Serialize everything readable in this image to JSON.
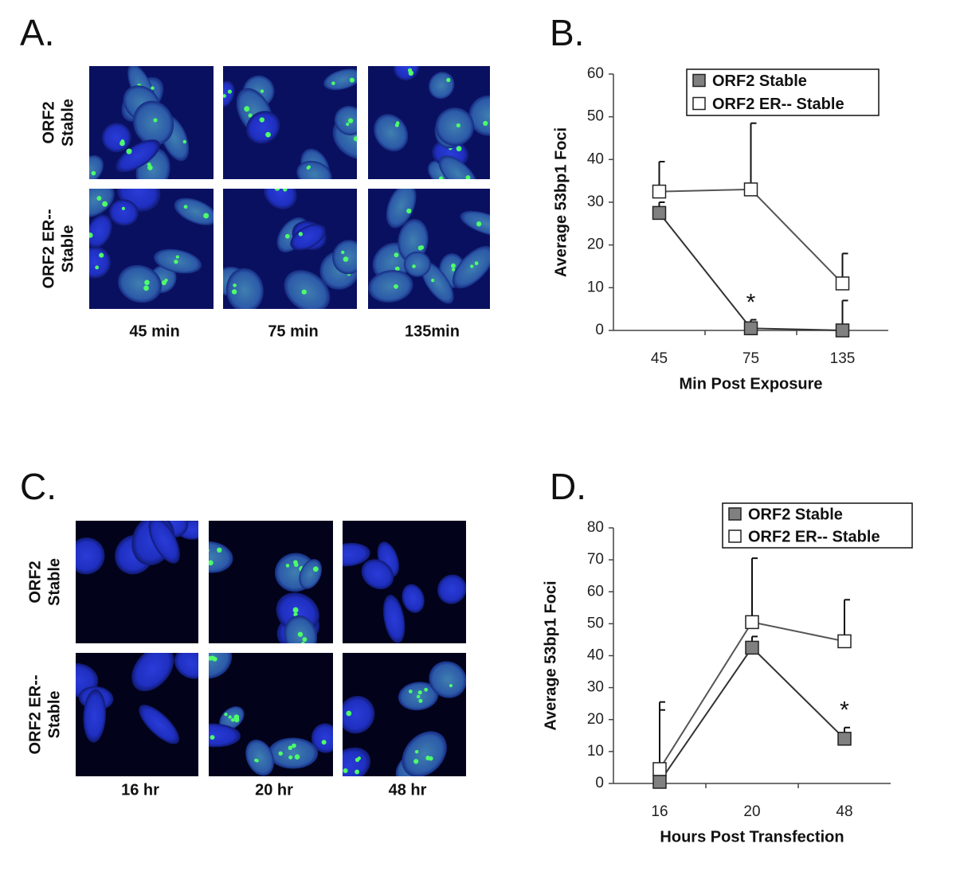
{
  "image_panels": [
    {
      "label": "A.",
      "row_labels": [
        [
          "ORF2",
          "Stable"
        ],
        [
          "ORF2 ER--",
          "Stable"
        ]
      ],
      "column_labels": [
        "45 min",
        "75 min",
        "135min"
      ]
    },
    {
      "label": "C.",
      "row_labels": [
        [
          "ORF2",
          "Stable"
        ],
        [
          "ORF2 ER--",
          "Stable"
        ]
      ],
      "column_labels": [
        "16 hr",
        "20 hr",
        "48 hr"
      ]
    }
  ],
  "chart_data": [
    {
      "type": "line",
      "label": "B.",
      "categories": [
        "45",
        "75",
        "135"
      ],
      "x_label": "Min Post Exposure",
      "y_label": "Average 53bp1 Foci",
      "ylim": [
        0,
        60
      ],
      "yticks": [
        0,
        10,
        20,
        30,
        40,
        50,
        60
      ],
      "series": [
        {
          "name": "ORF2 Stable",
          "color": "#808080",
          "values": [
            27.5,
            0.5,
            0
          ],
          "errors": [
            2.5,
            2,
            7
          ]
        },
        {
          "name": "ORF2 ER-- Stable",
          "color": "#ffffff",
          "values": [
            32.5,
            33,
            11
          ],
          "errors": [
            7,
            15.5,
            7
          ]
        }
      ],
      "annotations": [
        {
          "text": "*",
          "category": 1
        }
      ]
    },
    {
      "type": "line",
      "label": "D.",
      "categories": [
        "16",
        "20",
        "48"
      ],
      "x_label": "Hours Post Transfection",
      "y_label": "Average 53bp1 Foci",
      "ylim": [
        0,
        80
      ],
      "yticks": [
        0,
        10,
        20,
        30,
        40,
        50,
        60,
        70,
        80
      ],
      "series": [
        {
          "name": "ORF2 Stable",
          "color": "#808080",
          "values": [
            0.5,
            42.5,
            14
          ],
          "errors": [
            22.5,
            3.5,
            3.5
          ]
        },
        {
          "name": "ORF2 ER-- Stable",
          "color": "#ffffff",
          "values": [
            4.5,
            50.5,
            44.5
          ],
          "errors": [
            21,
            20,
            13
          ]
        }
      ],
      "annotations": [
        {
          "text": "*",
          "category": 2
        }
      ]
    }
  ]
}
